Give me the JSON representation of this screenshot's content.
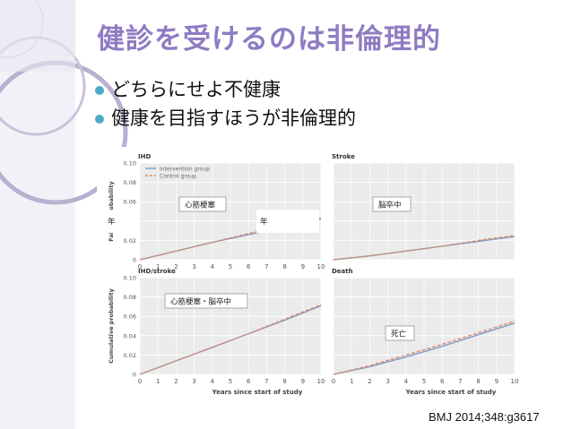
{
  "slide": {
    "title": "健診を受けるのは非倫理的",
    "bullets": [
      "どちらにせよ不健康",
      "健康を目指すほうが非倫理的"
    ],
    "citation": "BMJ 2014;348:g3617",
    "colors": {
      "title": "#8e7cc3",
      "bullet": "#4bacc6",
      "decoration": "#b7b0cf",
      "intervention": "#7a9cc6",
      "control": "#e08a6a",
      "panel_bg": "#ebebeb"
    }
  },
  "chart_data": [
    {
      "type": "line",
      "panel": "IHD",
      "title": "IHD",
      "ylabel": "Failure probability",
      "xlabel": "",
      "xlim": [
        0,
        10
      ],
      "ylim": [
        0,
        0.1
      ],
      "xticks": [
        "0",
        "1",
        "2",
        "3",
        "4",
        "5",
        "6",
        "7",
        "8",
        "9",
        "10"
      ],
      "yticks": [
        "0",
        "0.02",
        "0.04",
        "0.06",
        "0.08",
        "0.10"
      ],
      "legend": [
        "Intervention group",
        "Control group"
      ],
      "annotation": "心筋梗塞",
      "overlay_labels": [
        "年",
        "年"
      ],
      "series": [
        {
          "name": "Intervention group",
          "x": [
            0,
            2,
            4,
            6,
            8,
            10
          ],
          "y": [
            0.0,
            0.009,
            0.018,
            0.026,
            0.034,
            0.042
          ]
        },
        {
          "name": "Control group",
          "x": [
            0,
            2,
            4,
            6,
            8,
            10
          ],
          "y": [
            0.0,
            0.009,
            0.018,
            0.027,
            0.035,
            0.043
          ]
        }
      ]
    },
    {
      "type": "line",
      "panel": "Stroke",
      "title": "Stroke",
      "xlim": [
        0,
        10
      ],
      "ylim": [
        0,
        0.1
      ],
      "xticks": [],
      "yticks": [],
      "annotation": "脳卒中",
      "series": [
        {
          "name": "Intervention group",
          "x": [
            0,
            2,
            4,
            6,
            8,
            10
          ],
          "y": [
            0.0,
            0.004,
            0.009,
            0.014,
            0.019,
            0.024
          ]
        },
        {
          "name": "Control group",
          "x": [
            0,
            2,
            4,
            6,
            8,
            10
          ],
          "y": [
            0.0,
            0.004,
            0.009,
            0.014,
            0.02,
            0.025
          ]
        }
      ]
    },
    {
      "type": "line",
      "panel": "IHD/stroke",
      "title": "IHD/stroke",
      "ylabel": "Cumulative probability",
      "xlabel": "",
      "xlim": [
        0,
        10
      ],
      "ylim": [
        0,
        0.1
      ],
      "xticks": [
        "0",
        "1",
        "2",
        "3",
        "4",
        "5",
        "6",
        "7",
        "8",
        "9",
        "10"
      ],
      "yticks": [
        "0",
        "0.02",
        "0.04",
        "0.06",
        "0.08",
        "0.10"
      ],
      "annotation": "心筋梗塞・脳卒中",
      "series": [
        {
          "name": "Intervention group",
          "x": [
            0,
            2,
            4,
            6,
            8,
            10
          ],
          "y": [
            0.0,
            0.014,
            0.028,
            0.042,
            0.056,
            0.071
          ]
        },
        {
          "name": "Control group",
          "x": [
            0,
            2,
            4,
            6,
            8,
            10
          ],
          "y": [
            0.0,
            0.014,
            0.028,
            0.042,
            0.057,
            0.072
          ]
        }
      ]
    },
    {
      "type": "line",
      "panel": "Death",
      "title": "Death",
      "xlabel": "Years since start of study",
      "xlim": [
        0,
        10
      ],
      "ylim": [
        0,
        0.1
      ],
      "xticks": [
        "0",
        "1",
        "2",
        "3",
        "4",
        "5",
        "6",
        "7",
        "8",
        "9",
        "10"
      ],
      "yticks": [],
      "annotation": "死亡",
      "series": [
        {
          "name": "Intervention group",
          "x": [
            0,
            2,
            4,
            6,
            8,
            10
          ],
          "y": [
            0.0,
            0.008,
            0.018,
            0.029,
            0.041,
            0.053
          ]
        },
        {
          "name": "Control group",
          "x": [
            0,
            2,
            4,
            6,
            8,
            10
          ],
          "y": [
            0.0,
            0.009,
            0.02,
            0.031,
            0.043,
            0.055
          ]
        }
      ]
    }
  ],
  "figure_text": {
    "xlabel_left": "Years since start of study"
  }
}
